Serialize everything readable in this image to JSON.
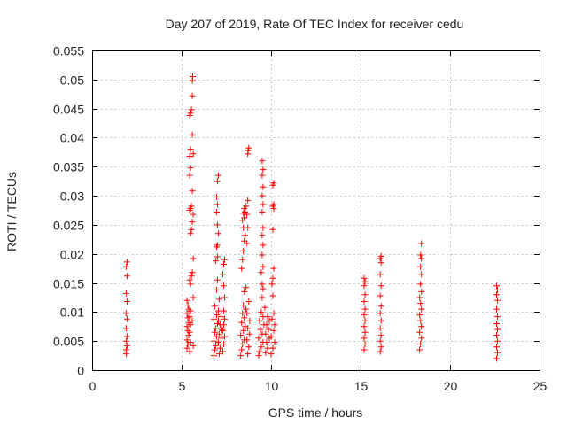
{
  "chart_data": {
    "type": "scatter",
    "title": "Day 207 of 2019, Rate Of TEC Index for receiver cedu",
    "xlabel": "GPS time / hours",
    "ylabel": "ROTI / TECUs",
    "xlim": [
      0,
      25
    ],
    "ylim": [
      0,
      0.055
    ],
    "xticks": [
      0,
      5,
      10,
      15,
      20,
      25
    ],
    "xtick_labels": [
      "0",
      "5",
      "10",
      "15",
      "20",
      "25"
    ],
    "yticks": [
      0,
      0.005,
      0.01,
      0.015,
      0.02,
      0.025,
      0.03,
      0.035,
      0.04,
      0.045,
      0.05,
      0.055
    ],
    "ytick_labels": [
      "0",
      "0.005",
      "0.01",
      "0.015",
      "0.02",
      "0.025",
      "0.03",
      "0.035",
      "0.04",
      "0.045",
      "0.05",
      "0.055"
    ],
    "grid": true,
    "marker": "+",
    "series": [
      {
        "name": "ROTI",
        "color": "#ff0000",
        "points": [
          [
            1.9,
            0.0028
          ],
          [
            1.9,
            0.0035
          ],
          [
            1.95,
            0.0042
          ],
          [
            1.9,
            0.005
          ],
          [
            1.95,
            0.0058
          ],
          [
            1.9,
            0.0072
          ],
          [
            1.95,
            0.0088
          ],
          [
            1.9,
            0.0098
          ],
          [
            1.95,
            0.0118
          ],
          [
            1.9,
            0.0132
          ],
          [
            1.95,
            0.0162
          ],
          [
            1.9,
            0.0178
          ],
          [
            1.95,
            0.0186
          ],
          [
            5.3,
            0.0038
          ],
          [
            5.35,
            0.0045
          ],
          [
            5.3,
            0.0052
          ],
          [
            5.4,
            0.006
          ],
          [
            5.35,
            0.0068
          ],
          [
            5.3,
            0.0075
          ],
          [
            5.4,
            0.0082
          ],
          [
            5.35,
            0.009
          ],
          [
            5.3,
            0.0098
          ],
          [
            5.4,
            0.0105
          ],
          [
            5.35,
            0.0112
          ],
          [
            5.3,
            0.012
          ],
          [
            5.45,
            0.0032
          ],
          [
            5.5,
            0.0048
          ],
          [
            5.45,
            0.0065
          ],
          [
            5.5,
            0.0078
          ],
          [
            5.45,
            0.0092
          ],
          [
            5.5,
            0.0102
          ],
          [
            5.5,
            0.0148
          ],
          [
            5.45,
            0.0155
          ],
          [
            5.55,
            0.0162
          ],
          [
            5.5,
            0.0235
          ],
          [
            5.55,
            0.0242
          ],
          [
            5.45,
            0.0275
          ],
          [
            5.5,
            0.0278
          ],
          [
            5.55,
            0.0282
          ],
          [
            5.45,
            0.0335
          ],
          [
            5.5,
            0.0348
          ],
          [
            5.45,
            0.0368
          ],
          [
            5.5,
            0.038
          ],
          [
            5.45,
            0.0438
          ],
          [
            5.5,
            0.0442
          ],
          [
            5.55,
            0.0448
          ],
          [
            5.6,
            0.0472
          ],
          [
            5.6,
            0.0498
          ],
          [
            5.62,
            0.0505
          ],
          [
            5.6,
            0.0405
          ],
          [
            5.65,
            0.0372
          ],
          [
            5.6,
            0.0308
          ],
          [
            5.65,
            0.0268
          ],
          [
            5.6,
            0.0255
          ],
          [
            5.65,
            0.0192
          ],
          [
            5.6,
            0.0168
          ],
          [
            5.65,
            0.0125
          ],
          [
            5.6,
            0.0085
          ],
          [
            5.65,
            0.0042
          ],
          [
            6.8,
            0.0025
          ],
          [
            6.85,
            0.0035
          ],
          [
            6.9,
            0.0042
          ],
          [
            6.8,
            0.005
          ],
          [
            6.95,
            0.0058
          ],
          [
            6.85,
            0.0065
          ],
          [
            6.9,
            0.0072
          ],
          [
            7.0,
            0.008
          ],
          [
            6.8,
            0.0088
          ],
          [
            6.95,
            0.0095
          ],
          [
            7.05,
            0.0102
          ],
          [
            6.85,
            0.011
          ],
          [
            7.1,
            0.0028
          ],
          [
            7.15,
            0.0038
          ],
          [
            7.05,
            0.0048
          ],
          [
            7.2,
            0.0055
          ],
          [
            7.1,
            0.0062
          ],
          [
            7.25,
            0.007
          ],
          [
            7.15,
            0.0078
          ],
          [
            7.05,
            0.0085
          ],
          [
            7.2,
            0.0092
          ],
          [
            7.1,
            0.0122
          ],
          [
            6.95,
            0.0138
          ],
          [
            7.0,
            0.0155
          ],
          [
            6.9,
            0.0188
          ],
          [
            7.0,
            0.0195
          ],
          [
            6.95,
            0.0212
          ],
          [
            7.0,
            0.0215
          ],
          [
            7.05,
            0.0235
          ],
          [
            7.0,
            0.025
          ],
          [
            6.95,
            0.0272
          ],
          [
            7.0,
            0.0285
          ],
          [
            6.95,
            0.0298
          ],
          [
            7.0,
            0.0325
          ],
          [
            7.05,
            0.0335
          ],
          [
            7.3,
            0.0032
          ],
          [
            7.35,
            0.0045
          ],
          [
            7.4,
            0.0058
          ],
          [
            7.3,
            0.0068
          ],
          [
            7.35,
            0.0078
          ],
          [
            7.4,
            0.0088
          ],
          [
            7.35,
            0.0102
          ],
          [
            7.4,
            0.0125
          ],
          [
            7.35,
            0.0145
          ],
          [
            7.3,
            0.0165
          ],
          [
            7.35,
            0.0182
          ],
          [
            7.4,
            0.019
          ],
          [
            8.3,
            0.0025
          ],
          [
            8.35,
            0.0035
          ],
          [
            8.4,
            0.0045
          ],
          [
            8.5,
            0.0052
          ],
          [
            8.3,
            0.006
          ],
          [
            8.45,
            0.0068
          ],
          [
            8.55,
            0.0075
          ],
          [
            8.35,
            0.0082
          ],
          [
            8.5,
            0.009
          ],
          [
            8.4,
            0.0098
          ],
          [
            8.6,
            0.0105
          ],
          [
            8.45,
            0.0112
          ],
          [
            8.7,
            0.0028
          ],
          [
            8.75,
            0.004
          ],
          [
            8.65,
            0.0052
          ],
          [
            8.8,
            0.0062
          ],
          [
            8.7,
            0.0072
          ],
          [
            8.8,
            0.0085
          ],
          [
            8.65,
            0.0098
          ],
          [
            8.75,
            0.0118
          ],
          [
            8.5,
            0.0135
          ],
          [
            8.6,
            0.0142
          ],
          [
            8.35,
            0.0175
          ],
          [
            8.4,
            0.019
          ],
          [
            8.45,
            0.0205
          ],
          [
            8.5,
            0.0222
          ],
          [
            8.55,
            0.0232
          ],
          [
            8.45,
            0.0245
          ],
          [
            8.4,
            0.0258
          ],
          [
            8.5,
            0.0262
          ],
          [
            8.45,
            0.027
          ],
          [
            8.55,
            0.0272
          ],
          [
            8.5,
            0.0278
          ],
          [
            8.6,
            0.0282
          ],
          [
            8.65,
            0.0218
          ],
          [
            8.7,
            0.0245
          ],
          [
            8.65,
            0.0268
          ],
          [
            8.7,
            0.0292
          ],
          [
            8.7,
            0.0372
          ],
          [
            8.72,
            0.0378
          ],
          [
            8.75,
            0.0382
          ],
          [
            9.3,
            0.0025
          ],
          [
            9.35,
            0.0032
          ],
          [
            9.45,
            0.004
          ],
          [
            9.55,
            0.0048
          ],
          [
            9.3,
            0.0055
          ],
          [
            9.5,
            0.0062
          ],
          [
            9.4,
            0.007
          ],
          [
            9.6,
            0.0078
          ],
          [
            9.35,
            0.0085
          ],
          [
            9.55,
            0.0092
          ],
          [
            9.45,
            0.01
          ],
          [
            9.65,
            0.0108
          ],
          [
            9.7,
            0.003
          ],
          [
            9.8,
            0.0038
          ],
          [
            9.75,
            0.0048
          ],
          [
            9.9,
            0.0055
          ],
          [
            9.7,
            0.0062
          ],
          [
            9.85,
            0.007
          ],
          [
            9.75,
            0.0078
          ],
          [
            9.9,
            0.0085
          ],
          [
            9.8,
            0.0092
          ],
          [
            9.5,
            0.0125
          ],
          [
            9.55,
            0.014
          ],
          [
            9.5,
            0.0148
          ],
          [
            9.45,
            0.0168
          ],
          [
            9.55,
            0.0178
          ],
          [
            9.5,
            0.0198
          ],
          [
            9.55,
            0.0215
          ],
          [
            9.5,
            0.0232
          ],
          [
            9.55,
            0.0245
          ],
          [
            9.5,
            0.0272
          ],
          [
            9.55,
            0.0285
          ],
          [
            9.5,
            0.03
          ],
          [
            9.55,
            0.0315
          ],
          [
            9.5,
            0.0335
          ],
          [
            9.55,
            0.0345
          ],
          [
            9.5,
            0.036
          ],
          [
            10.0,
            0.0028
          ],
          [
            10.1,
            0.0038
          ],
          [
            10.2,
            0.0048
          ],
          [
            10.0,
            0.0058
          ],
          [
            10.15,
            0.0068
          ],
          [
            10.2,
            0.0078
          ],
          [
            10.05,
            0.0088
          ],
          [
            10.15,
            0.0098
          ],
          [
            10.1,
            0.0128
          ],
          [
            10.05,
            0.0148
          ],
          [
            10.1,
            0.0158
          ],
          [
            10.15,
            0.0175
          ],
          [
            10.1,
            0.0242
          ],
          [
            10.15,
            0.0278
          ],
          [
            10.1,
            0.0282
          ],
          [
            10.15,
            0.0285
          ],
          [
            10.1,
            0.0318
          ],
          [
            10.15,
            0.0322
          ],
          [
            15.2,
            0.0035
          ],
          [
            15.25,
            0.0045
          ],
          [
            15.2,
            0.0055
          ],
          [
            15.25,
            0.0065
          ],
          [
            15.2,
            0.0075
          ],
          [
            15.25,
            0.0085
          ],
          [
            15.2,
            0.0095
          ],
          [
            15.25,
            0.0105
          ],
          [
            15.2,
            0.0118
          ],
          [
            15.25,
            0.013
          ],
          [
            15.2,
            0.0145
          ],
          [
            15.25,
            0.0152
          ],
          [
            15.2,
            0.0158
          ],
          [
            16.1,
            0.0032
          ],
          [
            16.15,
            0.004
          ],
          [
            16.1,
            0.005
          ],
          [
            16.15,
            0.006
          ],
          [
            16.1,
            0.0072
          ],
          [
            16.15,
            0.0085
          ],
          [
            16.1,
            0.0098
          ],
          [
            16.15,
            0.011
          ],
          [
            16.1,
            0.0128
          ],
          [
            16.15,
            0.0145
          ],
          [
            16.1,
            0.0165
          ],
          [
            16.15,
            0.0185
          ],
          [
            16.1,
            0.0192
          ],
          [
            16.15,
            0.0196
          ],
          [
            18.3,
            0.0035
          ],
          [
            18.35,
            0.0045
          ],
          [
            18.4,
            0.0055
          ],
          [
            18.3,
            0.0065
          ],
          [
            18.4,
            0.0075
          ],
          [
            18.35,
            0.0085
          ],
          [
            18.3,
            0.0095
          ],
          [
            18.4,
            0.0105
          ],
          [
            18.35,
            0.0115
          ],
          [
            18.3,
            0.0125
          ],
          [
            18.4,
            0.0135
          ],
          [
            18.35,
            0.0148
          ],
          [
            18.4,
            0.0165
          ],
          [
            18.35,
            0.0178
          ],
          [
            18.4,
            0.0192
          ],
          [
            18.35,
            0.0198
          ],
          [
            18.4,
            0.0218
          ],
          [
            22.6,
            0.002
          ],
          [
            22.65,
            0.003
          ],
          [
            22.6,
            0.004
          ],
          [
            22.65,
            0.005
          ],
          [
            22.6,
            0.006
          ],
          [
            22.65,
            0.007
          ],
          [
            22.6,
            0.008
          ],
          [
            22.65,
            0.0092
          ],
          [
            22.6,
            0.0105
          ],
          [
            22.65,
            0.012
          ],
          [
            22.6,
            0.013
          ],
          [
            22.65,
            0.0138
          ],
          [
            22.6,
            0.0145
          ]
        ]
      }
    ]
  }
}
